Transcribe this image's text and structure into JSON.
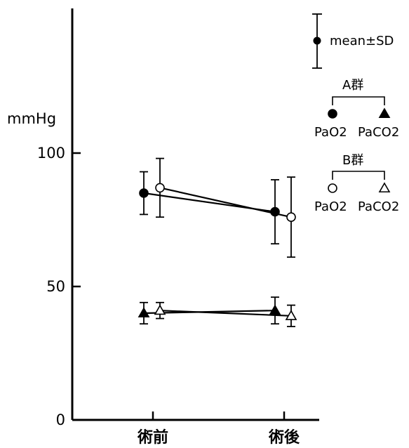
{
  "chart_data": {
    "type": "line",
    "categories": [
      "術前",
      "術後"
    ],
    "ylabel": "mmHg",
    "ylim": [
      0,
      110
    ],
    "yticks": [
      0,
      50,
      100
    ],
    "series": [
      {
        "group": "A群",
        "name": "PaO2",
        "marker": "filled-circle",
        "values": [
          85,
          78
        ],
        "sd": [
          8,
          12
        ]
      },
      {
        "group": "B群",
        "name": "PaO2",
        "marker": "open-circle",
        "values": [
          87,
          76
        ],
        "sd": [
          11,
          15
        ]
      },
      {
        "group": "A群",
        "name": "PaCO2",
        "marker": "filled-triangle",
        "values": [
          40,
          41
        ],
        "sd": [
          4,
          5
        ]
      },
      {
        "group": "B群",
        "name": "PaCO2",
        "marker": "open-triangle",
        "values": [
          41,
          39
        ],
        "sd": [
          3,
          4
        ]
      }
    ],
    "legend": {
      "placement": "top-right",
      "stat_label": "mean±SD",
      "groups": [
        {
          "title": "A群",
          "items": [
            {
              "marker": "filled-circle",
              "label": "PaO2"
            },
            {
              "marker": "filled-triangle",
              "label": "PaCO2"
            }
          ]
        },
        {
          "title": "B群",
          "items": [
            {
              "marker": "open-circle",
              "label": "PaO2"
            },
            {
              "marker": "open-triangle",
              "label": "PaCO2"
            }
          ]
        }
      ]
    }
  }
}
